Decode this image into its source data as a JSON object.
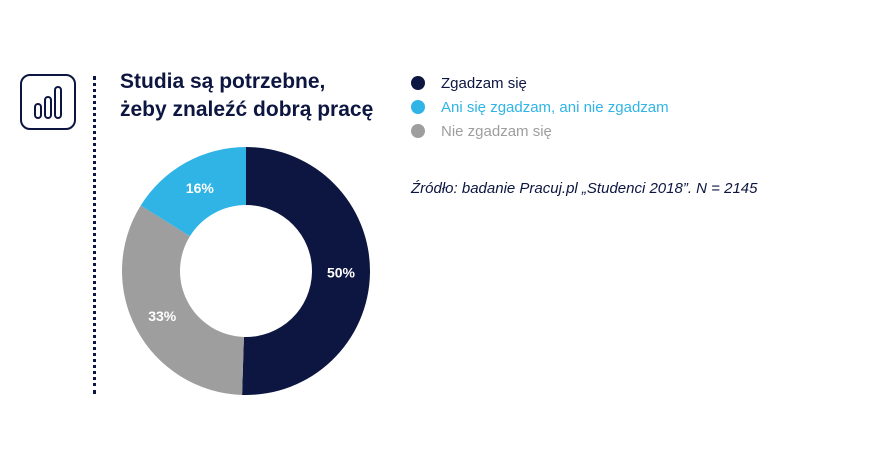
{
  "chart_data": {
    "type": "pie",
    "title": "Studia są potrzebne, żeby znaleźć dobrą pracę",
    "title_lines": [
      "Studia są potrzebne,",
      "żeby znaleźć dobrą pracę"
    ],
    "categories": [
      "Zgadzam się",
      "Ani się zgadzam, ani nie zgadzam",
      "Nie zgadzam się"
    ],
    "values": [
      50,
      16,
      33
    ],
    "data_labels": [
      "50%",
      "16%",
      "33%"
    ],
    "colors": [
      "#0d1640",
      "#30b4e6",
      "#9e9e9e"
    ],
    "legend_text_colors": [
      "#0d1640",
      "#30b4e6",
      "#9e9e9e"
    ],
    "legend_position": "right",
    "donut": true,
    "start_angle_deg": 0,
    "direction": "clockwise"
  },
  "source": "Źródło: badanie Pracuj.pl „Studenci 2018”. N = 2145",
  "icon": "bar-chart-icon"
}
